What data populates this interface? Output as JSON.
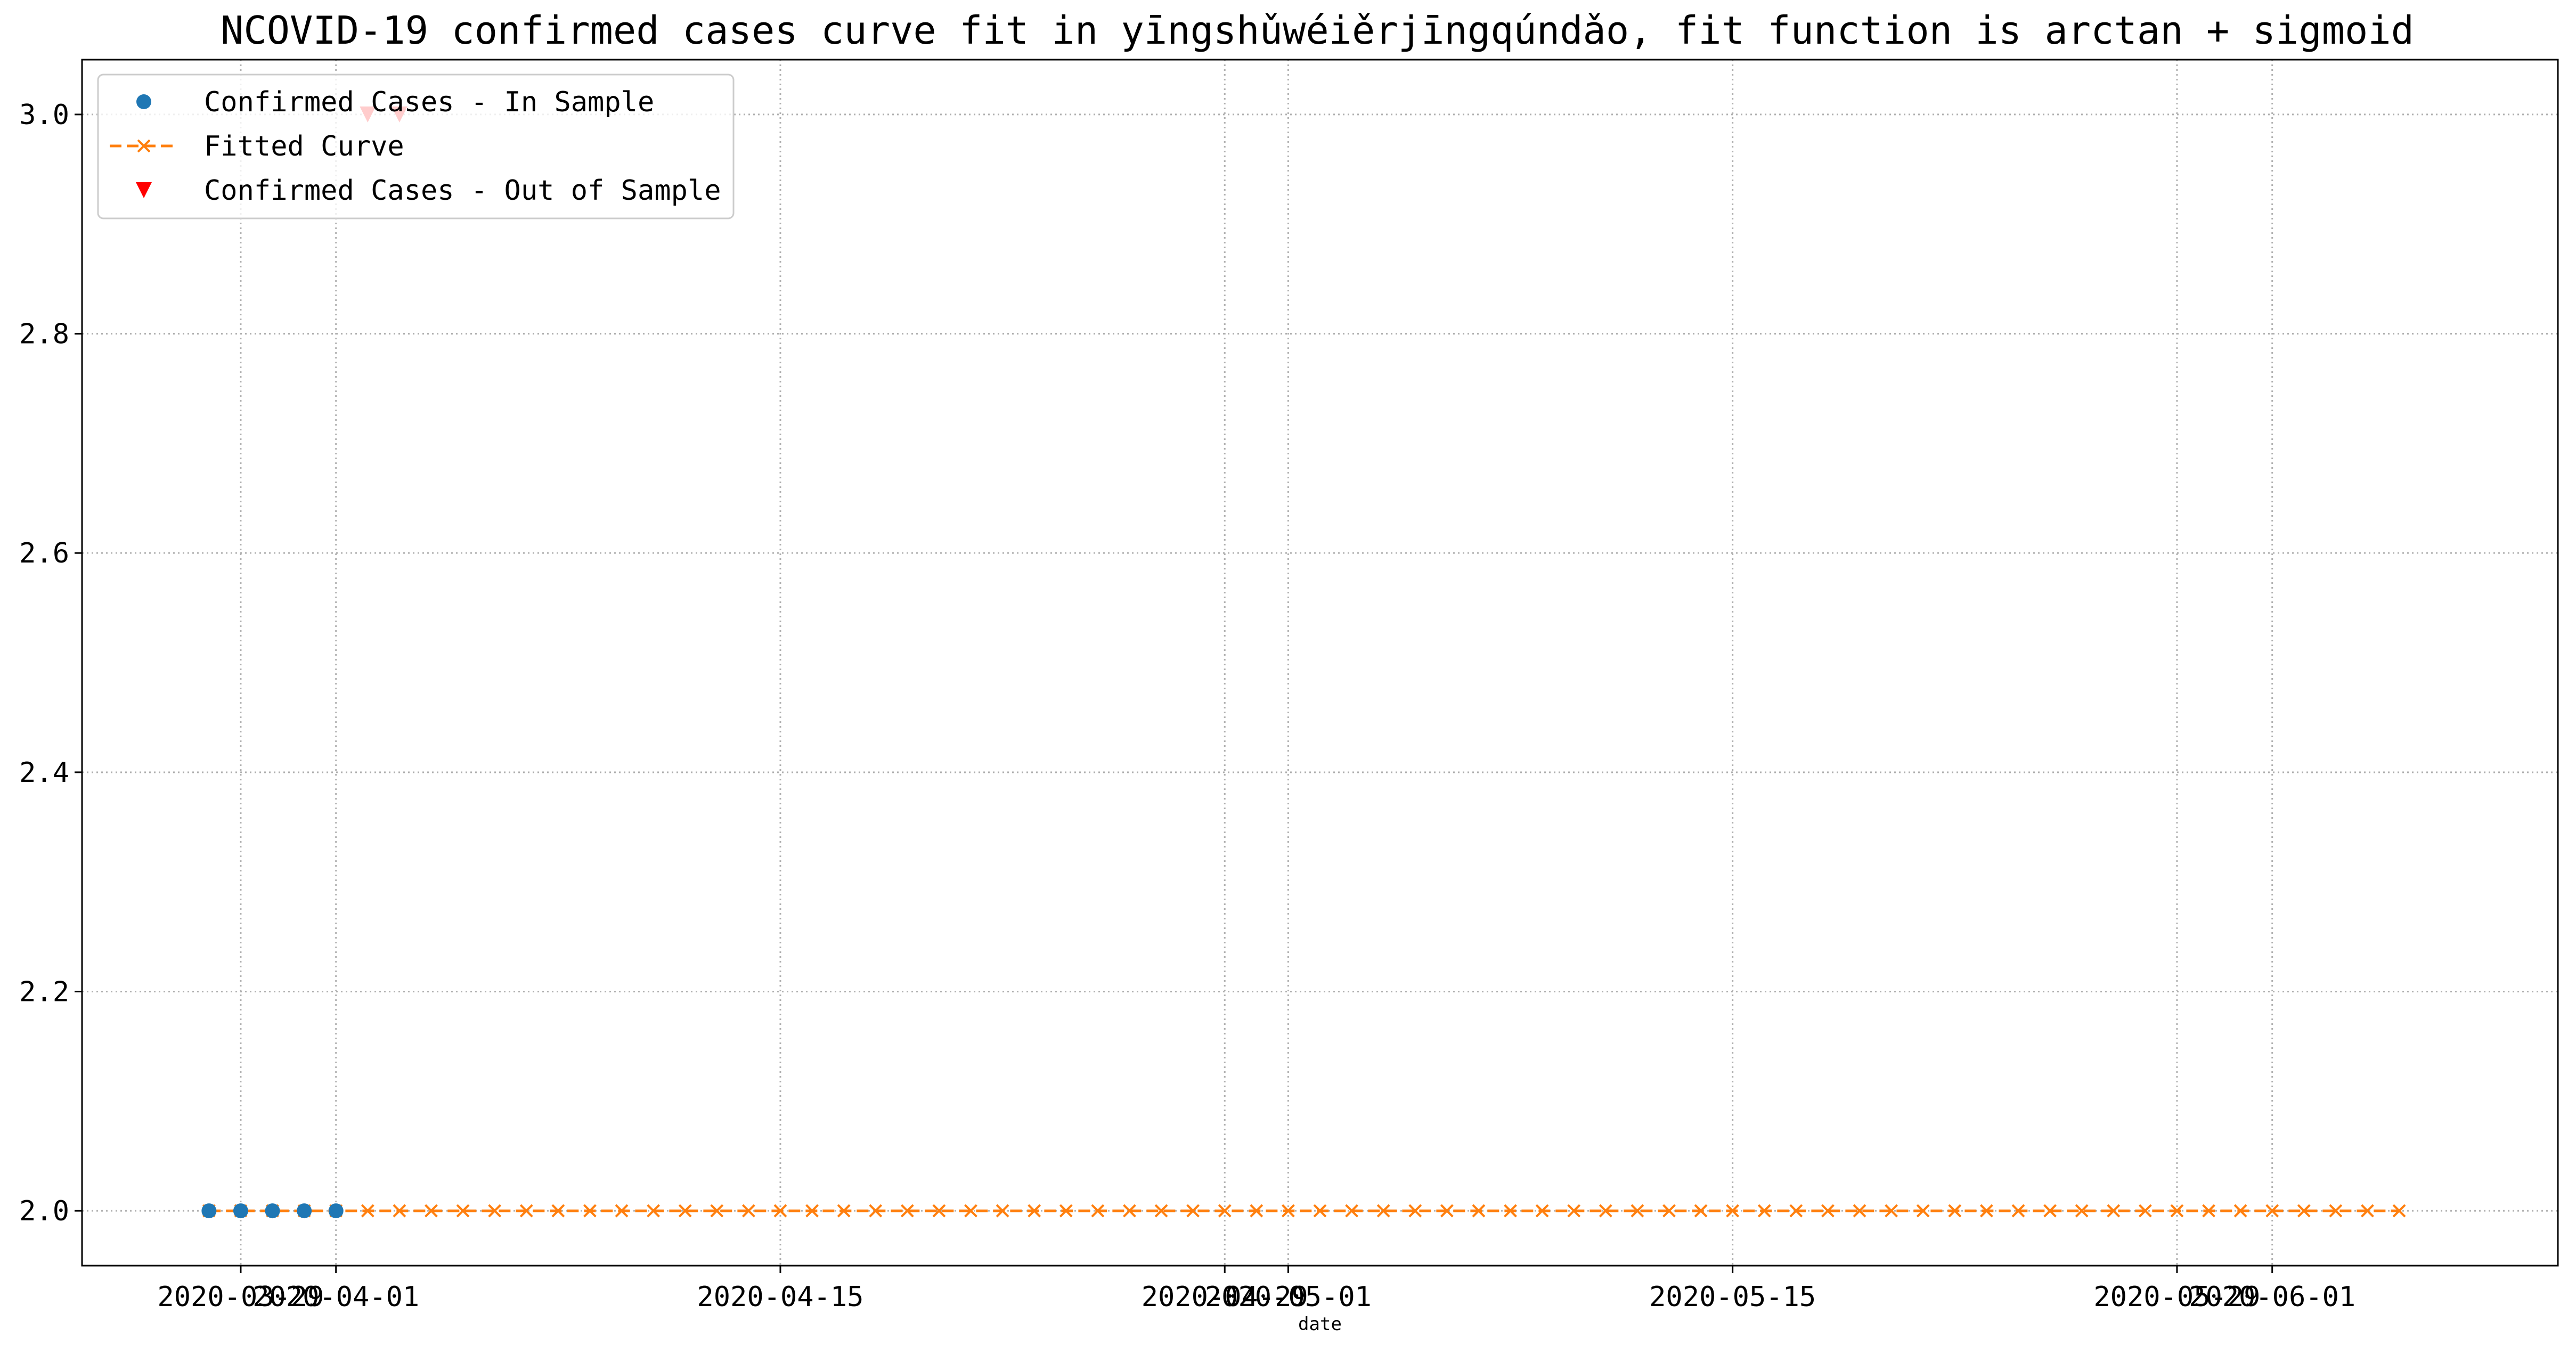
{
  "chart_data": {
    "type": "line",
    "title": "NCOVID-19 confirmed cases curve fit in yīngshǔwéiěrjīngqúndǎo, fit function is arctan + sigmoid",
    "xlabel": "date",
    "ylabel": "",
    "x_range": [
      "2020-03-24",
      "2020-06-10"
    ],
    "ylim": [
      1.95,
      3.05
    ],
    "y_ticks": [
      2.0,
      2.2,
      2.4,
      2.6,
      2.8,
      3.0
    ],
    "y_tick_labels": [
      "2.0",
      "2.2",
      "2.4",
      "2.6",
      "2.8",
      "3.0"
    ],
    "x_ticks": [
      {
        "date": "2020-03-29",
        "label": "2020-03-29"
      },
      {
        "date": "2020-04-01",
        "label": "2020-04-01"
      },
      {
        "date": "2020-04-15",
        "label": "2020-04-15"
      },
      {
        "date": "2020-04-29",
        "label": "2020-04-29"
      },
      {
        "date": "2020-05-01",
        "label": "2020-05-01"
      },
      {
        "date": "2020-05-15",
        "label": "2020-05-15"
      },
      {
        "date": "2020-05-29",
        "label": "2020-05-29"
      },
      {
        "date": "2020-06-01",
        "label": "2020-06-01"
      }
    ],
    "grid": true,
    "legend_position": "top-left",
    "series": [
      {
        "name": "Confirmed Cases - In Sample",
        "kind": "marker-circle",
        "color": "#1f77b4",
        "x": [
          "2020-03-28",
          "2020-03-29",
          "2020-03-30",
          "2020-03-31",
          "2020-04-01"
        ],
        "y": [
          2,
          2,
          2,
          2,
          2
        ]
      },
      {
        "name": "Fitted Curve",
        "kind": "dashed-line-x",
        "color": "#ff7f0e",
        "x_start": "2020-03-28",
        "x_end": "2020-06-05",
        "y_constant": 2.0
      },
      {
        "name": "Confirmed Cases - Out of Sample",
        "kind": "marker-triangle-down",
        "color": "#ff0000",
        "x": [
          "2020-04-02",
          "2020-04-03"
        ],
        "y": [
          3,
          3
        ]
      }
    ]
  }
}
